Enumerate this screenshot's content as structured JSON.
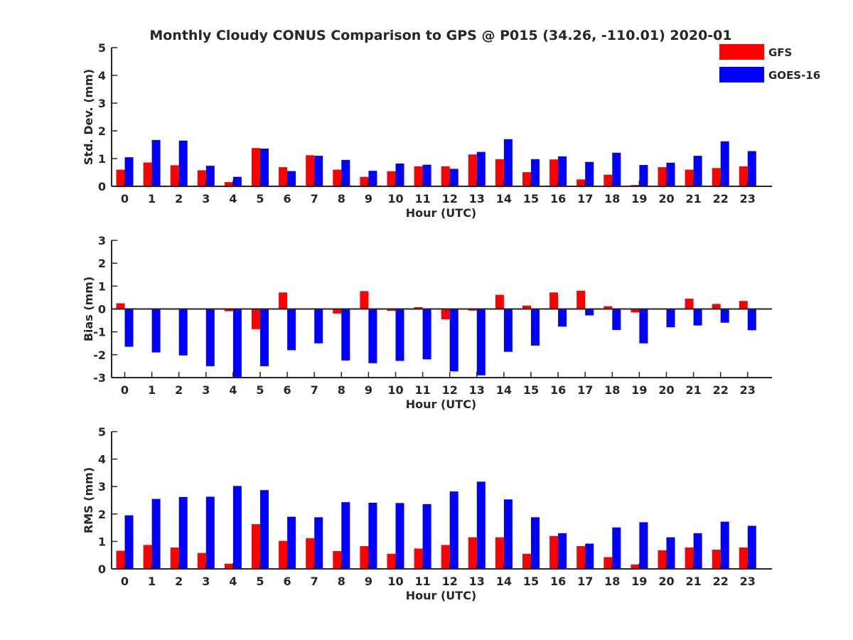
{
  "title": "Monthly Cloudy CONUS Comparison to GPS @ P015 (34.26, -110.01) 2020-01",
  "colors": {
    "GFS": "#ff0000",
    "GOES-16": "#0000ff",
    "axis": "#262626"
  },
  "legend": {
    "placement": "top-right",
    "entries": [
      "GFS",
      "GOES-16"
    ]
  },
  "chart_data": [
    {
      "type": "bar",
      "xlabel": "Hour (UTC)",
      "ylabel": "Std. Dev. (mm)",
      "ylim": [
        0,
        5
      ],
      "yticks": [
        0,
        1,
        2,
        3,
        4,
        5
      ],
      "grid": false,
      "categories": [
        "0",
        "1",
        "2",
        "3",
        "4",
        "5",
        "6",
        "7",
        "8",
        "9",
        "10",
        "11",
        "12",
        "13",
        "14",
        "15",
        "16",
        "17",
        "18",
        "19",
        "20",
        "21",
        "22",
        "23"
      ],
      "series": [
        {
          "name": "GFS",
          "values": [
            0.6,
            0.86,
            0.76,
            0.58,
            0.15,
            1.38,
            0.69,
            1.12,
            0.6,
            0.34,
            0.54,
            0.72,
            0.72,
            1.15,
            0.98,
            0.51,
            0.97,
            0.25,
            0.42,
            0.05,
            0.69,
            0.6,
            0.66,
            0.72
          ]
        },
        {
          "name": "GOES-16",
          "values": [
            1.05,
            1.67,
            1.65,
            0.74,
            0.34,
            1.36,
            0.55,
            1.1,
            0.95,
            0.56,
            0.82,
            0.78,
            0.63,
            1.24,
            1.7,
            0.98,
            1.08,
            0.88,
            1.21,
            0.77,
            0.85,
            1.1,
            1.62,
            1.27
          ]
        }
      ]
    },
    {
      "type": "bar",
      "xlabel": "Hour (UTC)",
      "ylabel": "Bias (mm)",
      "ylim": [
        -3,
        3
      ],
      "yticks": [
        -3,
        -2,
        -1,
        0,
        1,
        2,
        3
      ],
      "grid": false,
      "zero_line": true,
      "categories": [
        "0",
        "1",
        "2",
        "3",
        "4",
        "5",
        "6",
        "7",
        "8",
        "9",
        "10",
        "11",
        "12",
        "13",
        "14",
        "15",
        "16",
        "17",
        "18",
        "19",
        "20",
        "21",
        "22",
        "23"
      ],
      "series": [
        {
          "name": "GFS",
          "values": [
            0.25,
            0.02,
            0.02,
            0.02,
            -0.1,
            -0.88,
            0.72,
            0.0,
            -0.2,
            0.78,
            -0.08,
            0.08,
            -0.45,
            -0.07,
            0.62,
            0.15,
            0.72,
            0.8,
            0.12,
            -0.15,
            0.0,
            0.45,
            0.22,
            0.35
          ]
        },
        {
          "name": "GOES-16",
          "values": [
            -1.65,
            -1.9,
            -2.03,
            -2.5,
            -3.0,
            -2.5,
            -1.8,
            -1.5,
            -2.25,
            -2.37,
            -2.27,
            -2.2,
            -2.73,
            -2.9,
            -1.87,
            -1.6,
            -0.77,
            -0.28,
            -0.92,
            -1.5,
            -0.8,
            -0.72,
            -0.6,
            -0.93
          ]
        }
      ]
    },
    {
      "type": "bar",
      "xlabel": "Hour (UTC)",
      "ylabel": "RMS (mm)",
      "ylim": [
        0,
        5
      ],
      "yticks": [
        0,
        1,
        2,
        3,
        4,
        5
      ],
      "grid": false,
      "categories": [
        "0",
        "1",
        "2",
        "3",
        "4",
        "5",
        "6",
        "7",
        "8",
        "9",
        "10",
        "11",
        "12",
        "13",
        "14",
        "15",
        "16",
        "17",
        "18",
        "19",
        "20",
        "21",
        "22",
        "23"
      ],
      "series": [
        {
          "name": "GFS",
          "values": [
            0.66,
            0.87,
            0.78,
            0.58,
            0.19,
            1.63,
            1.02,
            1.12,
            0.65,
            0.83,
            0.55,
            0.74,
            0.87,
            1.15,
            1.15,
            0.55,
            1.2,
            0.83,
            0.43,
            0.16,
            0.68,
            0.78,
            0.7,
            0.78
          ]
        },
        {
          "name": "GOES-16",
          "values": [
            1.95,
            2.55,
            2.62,
            2.63,
            3.02,
            2.87,
            1.9,
            1.88,
            2.43,
            2.41,
            2.4,
            2.36,
            2.82,
            3.18,
            2.53,
            1.88,
            1.3,
            0.92,
            1.51,
            1.7,
            1.15,
            1.3,
            1.72,
            1.57
          ]
        }
      ]
    }
  ]
}
